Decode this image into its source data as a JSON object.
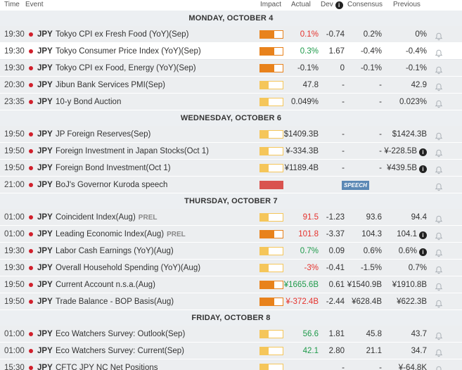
{
  "header": {
    "time": "Time",
    "event": "Event",
    "impact": "Impact",
    "actual": "Actual",
    "dev": "Dev",
    "consensus": "Consensus",
    "previous": "Previous",
    "info_icon": "i"
  },
  "colors": {
    "high": "#e8821c",
    "medium": "#e8821c",
    "low": "#f5c65a",
    "speech": "#d9534f",
    "red": "#e5322d",
    "green": "#1e9a4a"
  },
  "days": [
    {
      "label": "MONDAY, OCTOBER 4",
      "events": [
        {
          "time": "19:30",
          "cur": "JPY",
          "event": "Tokyo CPI ex Fresh Food (YoY)(Sep)",
          "prel": "",
          "impact": "medium",
          "actual": "0.1%",
          "actual_color": "red",
          "dev": "-0.74",
          "consensus": "0.2%",
          "previous": "0%",
          "prev_info": false,
          "speech": ""
        },
        {
          "time": "19:30",
          "cur": "JPY",
          "event": "Tokyo Consumer Price Index (YoY)(Sep)",
          "prel": "",
          "impact": "medium",
          "actual": "0.3%",
          "actual_color": "green",
          "dev": "1.67",
          "consensus": "-0.4%",
          "previous": "-0.4%",
          "prev_info": false,
          "speech": ""
        },
        {
          "time": "19:30",
          "cur": "JPY",
          "event": "Tokyo CPI ex Food, Energy (YoY)(Sep)",
          "prel": "",
          "impact": "medium",
          "actual": "-0.1%",
          "actual_color": "dark",
          "dev": "0",
          "consensus": "-0.1%",
          "previous": "-0.1%",
          "prev_info": false,
          "speech": ""
        },
        {
          "time": "20:30",
          "cur": "JPY",
          "event": "Jibun Bank Services PMI(Sep)",
          "prel": "",
          "impact": "low",
          "actual": "47.8",
          "actual_color": "dark",
          "dev": "-",
          "consensus": "-",
          "previous": "42.9",
          "prev_info": false,
          "speech": ""
        },
        {
          "time": "23:35",
          "cur": "JPY",
          "event": "10-y Bond Auction",
          "prel": "",
          "impact": "low",
          "actual": "0.049%",
          "actual_color": "dark",
          "dev": "-",
          "consensus": "-",
          "previous": "0.023%",
          "prev_info": false,
          "speech": ""
        }
      ]
    },
    {
      "label": "WEDNESDAY, OCTOBER 6",
      "events": [
        {
          "time": "19:50",
          "cur": "JPY",
          "event": "JP Foreign Reserves(Sep)",
          "prel": "",
          "impact": "low",
          "actual": "$1409.3B",
          "actual_color": "dark",
          "dev": "-",
          "consensus": "-",
          "previous": "$1424.3B",
          "prev_info": false,
          "speech": ""
        },
        {
          "time": "19:50",
          "cur": "JPY",
          "event": "Foreign Investment in Japan Stocks(Oct 1)",
          "prel": "",
          "impact": "low",
          "actual": "¥-334.3B",
          "actual_color": "dark",
          "dev": "-",
          "consensus": "-",
          "previous": "¥-228.5B",
          "prev_info": true,
          "speech": ""
        },
        {
          "time": "19:50",
          "cur": "JPY",
          "event": "Foreign Bond Investment(Oct 1)",
          "prel": "",
          "impact": "low",
          "actual": "¥1189.4B",
          "actual_color": "dark",
          "dev": "-",
          "consensus": "-",
          "previous": "¥439.5B",
          "prev_info": true,
          "speech": ""
        },
        {
          "time": "21:00",
          "cur": "JPY",
          "event": "BoJ's Governor Kuroda speech",
          "prel": "",
          "impact": "speech",
          "actual": "",
          "actual_color": "dark",
          "dev": "",
          "consensus": "",
          "previous": "",
          "prev_info": false,
          "speech": "SPEECH"
        }
      ]
    },
    {
      "label": "THURSDAY, OCTOBER 7",
      "events": [
        {
          "time": "01:00",
          "cur": "JPY",
          "event": "Coincident Index(Aug)",
          "prel": "PREL",
          "impact": "low",
          "actual": "91.5",
          "actual_color": "red",
          "dev": "-1.23",
          "consensus": "93.6",
          "previous": "94.4",
          "prev_info": false,
          "speech": ""
        },
        {
          "time": "01:00",
          "cur": "JPY",
          "event": "Leading Economic Index(Aug)",
          "prel": "PREL",
          "impact": "medium",
          "actual": "101.8",
          "actual_color": "red",
          "dev": "-3.37",
          "consensus": "104.3",
          "previous": "104.1",
          "prev_info": true,
          "speech": ""
        },
        {
          "time": "19:30",
          "cur": "JPY",
          "event": "Labor Cash Earnings (YoY)(Aug)",
          "prel": "",
          "impact": "low",
          "actual": "0.7%",
          "actual_color": "green",
          "dev": "0.09",
          "consensus": "0.6%",
          "previous": "0.6%",
          "prev_info": true,
          "speech": ""
        },
        {
          "time": "19:30",
          "cur": "JPY",
          "event": "Overall Household Spending (YoY)(Aug)",
          "prel": "",
          "impact": "low",
          "actual": "-3%",
          "actual_color": "red",
          "dev": "-0.41",
          "consensus": "-1.5%",
          "previous": "0.7%",
          "prev_info": false,
          "speech": ""
        },
        {
          "time": "19:50",
          "cur": "JPY",
          "event": "Current Account n.s.a.(Aug)",
          "prel": "",
          "impact": "medium",
          "actual": "¥1665.6B",
          "actual_color": "green",
          "dev": "0.61",
          "consensus": "¥1540.9B",
          "previous": "¥1910.8B",
          "prev_info": false,
          "speech": ""
        },
        {
          "time": "19:50",
          "cur": "JPY",
          "event": "Trade Balance - BOP Basis(Aug)",
          "prel": "",
          "impact": "medium",
          "actual": "¥-372.4B",
          "actual_color": "red",
          "dev": "-2.44",
          "consensus": "¥628.4B",
          "previous": "¥622.3B",
          "prev_info": false,
          "speech": ""
        }
      ]
    },
    {
      "label": "FRIDAY, OCTOBER 8",
      "events": [
        {
          "time": "01:00",
          "cur": "JPY",
          "event": "Eco Watchers Survey: Outlook(Sep)",
          "prel": "",
          "impact": "low",
          "actual": "56.6",
          "actual_color": "green",
          "dev": "1.81",
          "consensus": "45.8",
          "previous": "43.7",
          "prev_info": false,
          "speech": ""
        },
        {
          "time": "01:00",
          "cur": "JPY",
          "event": "Eco Watchers Survey: Current(Sep)",
          "prel": "",
          "impact": "low",
          "actual": "42.1",
          "actual_color": "green",
          "dev": "2.80",
          "consensus": "21.1",
          "previous": "34.7",
          "prev_info": false,
          "speech": ""
        },
        {
          "time": "15:30",
          "cur": "JPY",
          "event": "CFTC JPY NC Net Positions",
          "prel": "",
          "impact": "low",
          "actual": "",
          "actual_color": "dark",
          "dev": "-",
          "consensus": "-",
          "previous": "¥-64.8K",
          "prev_info": false,
          "speech": ""
        }
      ]
    }
  ]
}
